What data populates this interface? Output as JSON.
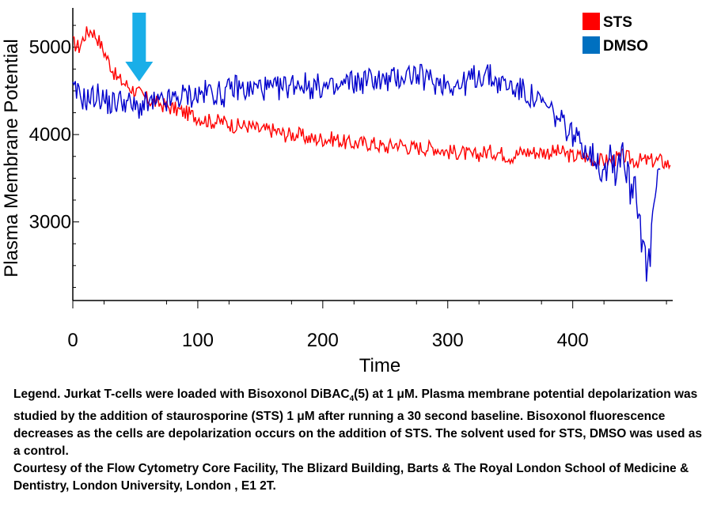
{
  "chart_data": {
    "type": "line",
    "title": "",
    "xlabel": "Time",
    "ylabel": "Plasma Membrane Potential",
    "xlim": [
      0,
      480
    ],
    "ylim": [
      2100,
      5450
    ],
    "x_ticks": [
      "0",
      "100",
      "200",
      "300",
      "400"
    ],
    "y_ticks": [
      "3000",
      "4000",
      "5000"
    ],
    "legend_position": "top-right",
    "annotation": {
      "type": "arrow",
      "x": 42,
      "color": "#19aee8",
      "meaning": "addition of STS"
    },
    "series": [
      {
        "name": "STS",
        "color": "#ff0000",
        "x": [
          0,
          5,
          10,
          15,
          20,
          25,
          30,
          35,
          40,
          45,
          50,
          55,
          60,
          70,
          80,
          90,
          100,
          110,
          120,
          130,
          140,
          150,
          160,
          170,
          180,
          190,
          200,
          210,
          220,
          230,
          240,
          250,
          260,
          270,
          280,
          290,
          300,
          310,
          320,
          330,
          340,
          350,
          360,
          370,
          380,
          390,
          400,
          410,
          420,
          430,
          440,
          450,
          460,
          470,
          478
        ],
        "y": [
          5050,
          5000,
          5150,
          5200,
          5100,
          4950,
          4800,
          4650,
          4600,
          4550,
          4500,
          4450,
          4400,
          4350,
          4300,
          4250,
          4200,
          4150,
          4150,
          4100,
          4100,
          4050,
          4050,
          4000,
          4000,
          3950,
          3950,
          3950,
          3900,
          3900,
          3900,
          3850,
          3900,
          3850,
          3850,
          3850,
          3800,
          3800,
          3750,
          3800,
          3800,
          3750,
          3800,
          3800,
          3800,
          3800,
          3750,
          3750,
          3700,
          3700,
          3750,
          3700,
          3700,
          3700,
          3650
        ]
      },
      {
        "name": "DMSO",
        "color": "#0000cc",
        "x": [
          0,
          10,
          20,
          30,
          40,
          50,
          60,
          70,
          80,
          90,
          100,
          110,
          120,
          130,
          140,
          150,
          160,
          170,
          180,
          190,
          200,
          210,
          220,
          230,
          240,
          250,
          260,
          270,
          280,
          290,
          300,
          310,
          320,
          330,
          340,
          350,
          360,
          370,
          380,
          390,
          400,
          410,
          420,
          425,
          430,
          435,
          440,
          445,
          450,
          455,
          460,
          465,
          470
        ],
        "y": [
          4500,
          4400,
          4450,
          4350,
          4400,
          4300,
          4350,
          4350,
          4400,
          4450,
          4450,
          4500,
          4450,
          4550,
          4500,
          4550,
          4500,
          4550,
          4600,
          4550,
          4550,
          4500,
          4600,
          4600,
          4650,
          4600,
          4650,
          4700,
          4650,
          4600,
          4600,
          4550,
          4650,
          4700,
          4600,
          4550,
          4500,
          4400,
          4300,
          4150,
          4000,
          3850,
          3700,
          3650,
          3800,
          3600,
          3900,
          3400,
          3500,
          2900,
          2300,
          3200,
          3600
        ]
      }
    ]
  },
  "caption": {
    "lines": [
      "Legend. Jurkat T-cells were loaded with Bisoxonol DiBAC",
      "4",
      "(5) at 1 μM. Plasma membrane potential depolarization was studied by the addition of staurosporine (STS) 1 μM after running a 30 second baseline. Bisoxonol fluorescence decreases as the cells are depolarization occurs on the addition of STS. The solvent used for STS, DMSO was used as a control.",
      "Courtesy of the Flow Cytometry Core Facility, The Blizard Building, Barts & The Royal London School of Medicine & Dentistry, London University, London , E1 2T."
    ]
  }
}
